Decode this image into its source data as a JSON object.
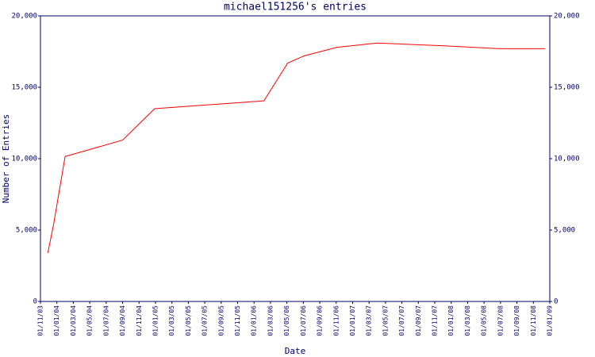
{
  "chart_data": {
    "type": "line",
    "title": "michael151256's entries",
    "x_label": "Date",
    "y_label": "Number of Entries",
    "xlim": [
      0,
      62
    ],
    "xticks": [
      {
        "value": 0,
        "label": "01/11/03"
      },
      {
        "value": 2,
        "label": "01/01/04"
      },
      {
        "value": 4,
        "label": "01/03/04"
      },
      {
        "value": 6,
        "label": "01/05/04"
      },
      {
        "value": 8,
        "label": "01/07/04"
      },
      {
        "value": 10,
        "label": "01/09/04"
      },
      {
        "value": 12,
        "label": "01/11/04"
      },
      {
        "value": 14,
        "label": "01/01/05"
      },
      {
        "value": 16,
        "label": "01/03/05"
      },
      {
        "value": 18,
        "label": "01/05/05"
      },
      {
        "value": 20,
        "label": "01/07/05"
      },
      {
        "value": 22,
        "label": "01/09/05"
      },
      {
        "value": 24,
        "label": "01/11/05"
      },
      {
        "value": 26,
        "label": "01/01/06"
      },
      {
        "value": 28,
        "label": "01/03/06"
      },
      {
        "value": 30,
        "label": "01/05/06"
      },
      {
        "value": 32,
        "label": "01/07/06"
      },
      {
        "value": 34,
        "label": "01/09/06"
      },
      {
        "value": 36,
        "label": "01/11/06"
      },
      {
        "value": 38,
        "label": "01/01/07"
      },
      {
        "value": 40,
        "label": "01/03/07"
      },
      {
        "value": 42,
        "label": "01/05/07"
      },
      {
        "value": 44,
        "label": "01/07/07"
      },
      {
        "value": 46,
        "label": "01/09/07"
      },
      {
        "value": 48,
        "label": "01/11/07"
      },
      {
        "value": 50,
        "label": "01/01/08"
      },
      {
        "value": 52,
        "label": "01/03/08"
      },
      {
        "value": 54,
        "label": "01/05/08"
      },
      {
        "value": 56,
        "label": "01/07/08"
      },
      {
        "value": 58,
        "label": "01/09/08"
      },
      {
        "value": 60,
        "label": "01/11/08"
      },
      {
        "value": 62,
        "label": "01/01/09"
      }
    ],
    "ylim": [
      0,
      20000
    ],
    "yticks": [
      0,
      {
        "value": 5000,
        "label": "5,000"
      },
      {
        "value": 10000,
        "label": "10,000"
      },
      {
        "value": 15000,
        "label": "15,000"
      },
      {
        "value": 20000,
        "label": "20,000"
      }
    ],
    "series": [
      {
        "color": "#ff0000",
        "x": [
          0.9,
          1.6,
          3.0,
          10.0,
          13.9,
          27.2,
          30.1,
          32.1,
          36.1,
          41.0,
          49.1,
          55.9,
          61.4
        ],
        "values": [
          3400,
          5400,
          10150,
          11300,
          13500,
          14050,
          16700,
          17200,
          17800,
          18100,
          17900,
          17700,
          17700
        ]
      }
    ]
  }
}
